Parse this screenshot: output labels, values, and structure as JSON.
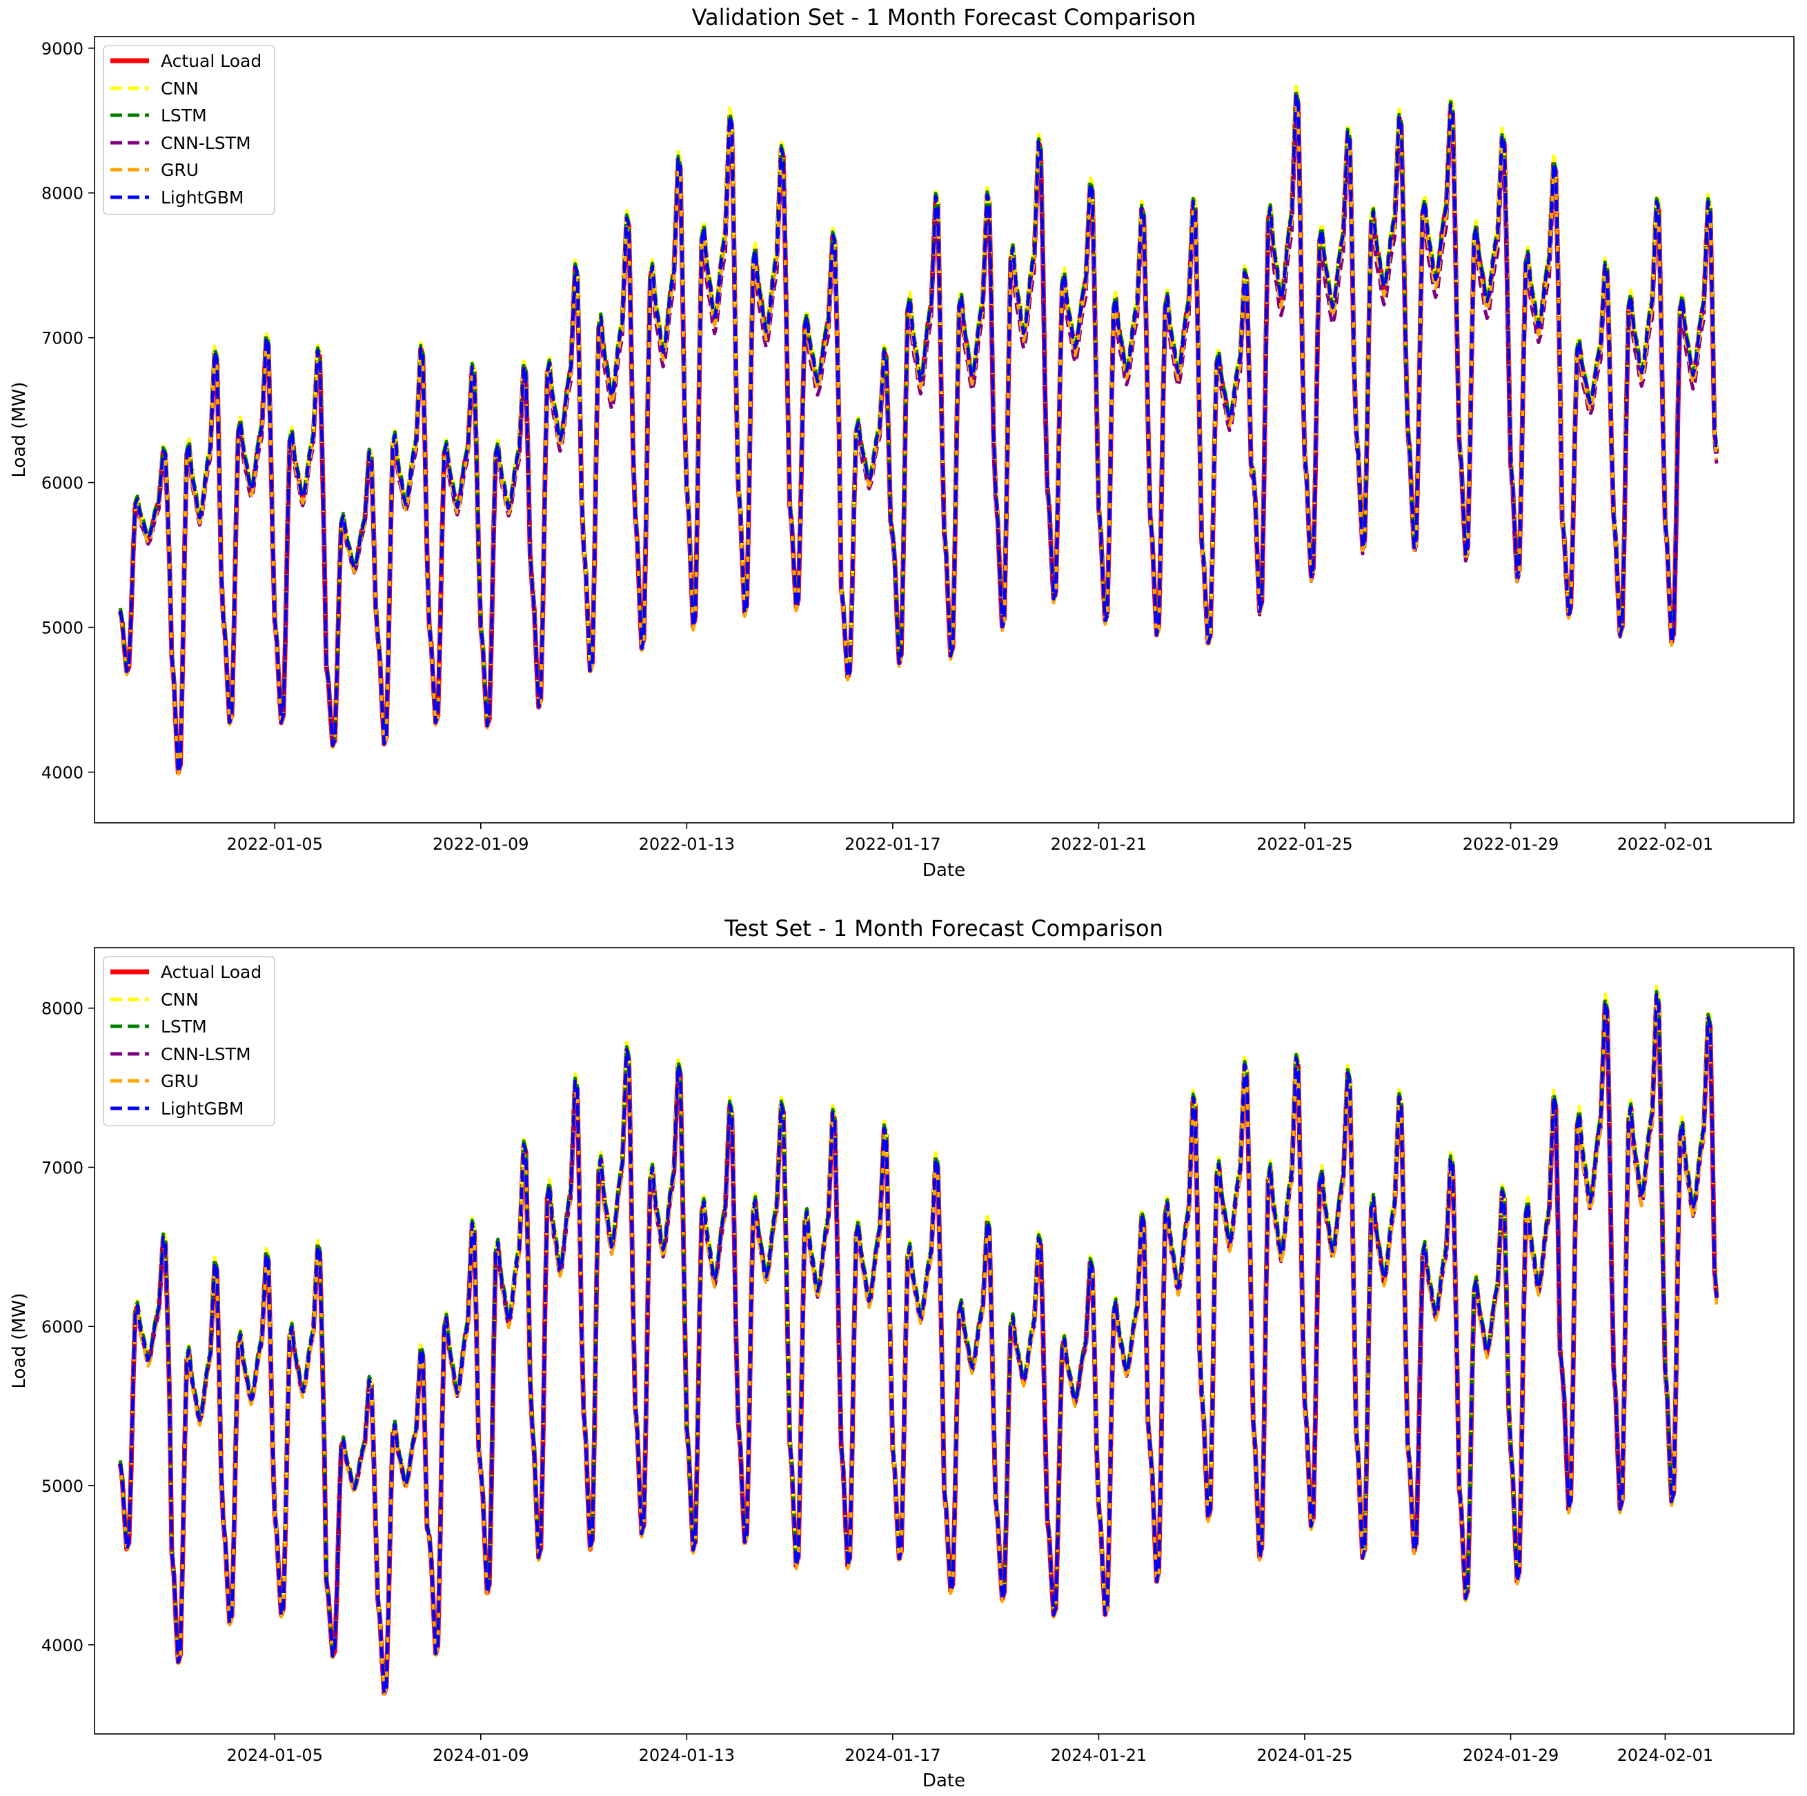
{
  "colors": {
    "actual": "#ff0000",
    "cnn": "#ffff00",
    "lstm": "#008000",
    "cnn_lstm": "#800080",
    "gru": "#ffa500",
    "lightgbm": "#0000ff"
  },
  "chart_data": [
    {
      "type": "line",
      "title": "Validation Set - 1 Month Forecast Comparison",
      "xlabel": "Date",
      "ylabel": "Load (MW)",
      "ylim": [
        3650,
        9080
      ],
      "yticks": [
        4000,
        5000,
        6000,
        7000,
        8000,
        9000
      ],
      "yticklabels": [
        "4000",
        "5000",
        "6000",
        "7000",
        "8000",
        "9000"
      ],
      "xlim_days": [
        -0.5,
        32.5
      ],
      "xticks_days": [
        3,
        7,
        11,
        15,
        19,
        23,
        27,
        30
      ],
      "xticklabels": [
        "2022-01-05",
        "2022-01-09",
        "2022-01-13",
        "2022-01-17",
        "2022-01-21",
        "2022-01-25",
        "2022-01-29",
        "2022-02-01"
      ],
      "start_date": "2022-01-02",
      "legend_position": "upper-left",
      "daily_min": [
        4670,
        3950,
        4300,
        4300,
        4150,
        4150,
        4300,
        4280,
        4400,
        4650,
        4800,
        4950,
        5050,
        5100,
        4620,
        4700,
        4750,
        4950,
        5150,
        5000,
        4900,
        4850,
        5050,
        5300,
        5500,
        5500,
        5450,
        5300,
        5050,
        4900,
        4850
      ],
      "daily_max": [
        6250,
        6960,
        7050,
        6960,
        6250,
        6980,
        6850,
        6850,
        7550,
        7890,
        8300,
        8600,
        8370,
        7760,
        6950,
        8040,
        8050,
        8420,
        8120,
        7950,
        8000,
        7500,
        8750,
        8480,
        8580,
        8670,
        8450,
        8260,
        7550,
        8000,
        8000
      ],
      "end_value": 6200,
      "series": [
        {
          "name": "Actual Load",
          "key": "actual",
          "offset": 0,
          "scale": 1.0
        },
        {
          "name": "CNN",
          "key": "cnn",
          "offset": 30,
          "scale": 1.01
        },
        {
          "name": "LSTM",
          "key": "lstm",
          "offset": 20,
          "scale": 1.0
        },
        {
          "name": "CNN-LSTM",
          "key": "cnn_lstm",
          "offset": -60,
          "scale": 0.955
        },
        {
          "name": "GRU",
          "key": "gru",
          "offset": -40,
          "scale": 0.985
        },
        {
          "name": "LightGBM",
          "key": "lightgbm",
          "offset": 0,
          "scale": 1.0
        }
      ]
    },
    {
      "type": "line",
      "title": "Test Set - 1 Month Forecast Comparison",
      "xlabel": "Date",
      "ylabel": "Load (MW)",
      "ylim": [
        3440,
        8380
      ],
      "yticks": [
        4000,
        5000,
        6000,
        7000,
        8000
      ],
      "yticklabels": [
        "4000",
        "5000",
        "6000",
        "7000",
        "8000"
      ],
      "xlim_days": [
        -0.5,
        32.5
      ],
      "xticks_days": [
        3,
        7,
        11,
        15,
        19,
        23,
        27,
        30
      ],
      "xticklabels": [
        "2024-01-05",
        "2024-01-09",
        "2024-01-13",
        "2024-01-17",
        "2024-01-21",
        "2024-01-25",
        "2024-01-29",
        "2024-02-01"
      ],
      "start_date": "2024-01-02",
      "legend_position": "upper-left",
      "daily_min": [
        4570,
        3850,
        4100,
        4150,
        3900,
        3660,
        3900,
        4280,
        4500,
        4550,
        4650,
        4550,
        4600,
        4450,
        4450,
        4500,
        4300,
        4250,
        4150,
        4150,
        4350,
        4750,
        4500,
        4700,
        4500,
        4550,
        4250,
        4350,
        4800,
        4800,
        4850
      ],
      "daily_max": [
        6600,
        6450,
        6500,
        6550,
        5700,
        5900,
        6700,
        7200,
        7600,
        7800,
        7700,
        7450,
        7450,
        7400,
        7300,
        7100,
        6700,
        6600,
        6450,
        6750,
        7500,
        7700,
        7750,
        7650,
        7500,
        7100,
        6900,
        7500,
        8100,
        8150,
        8000
      ],
      "end_value": 6180,
      "series": [
        {
          "name": "Actual Load",
          "key": "actual",
          "offset": 0,
          "scale": 1.0
        },
        {
          "name": "CNN",
          "key": "cnn",
          "offset": 30,
          "scale": 1.01
        },
        {
          "name": "LSTM",
          "key": "lstm",
          "offset": 20,
          "scale": 1.0
        },
        {
          "name": "CNN-LSTM",
          "key": "cnn_lstm",
          "offset": -30,
          "scale": 0.975
        },
        {
          "name": "GRU",
          "key": "gru",
          "offset": -40,
          "scale": 0.985
        },
        {
          "name": "LightGBM",
          "key": "lightgbm",
          "offset": 0,
          "scale": 1.0
        }
      ]
    }
  ]
}
